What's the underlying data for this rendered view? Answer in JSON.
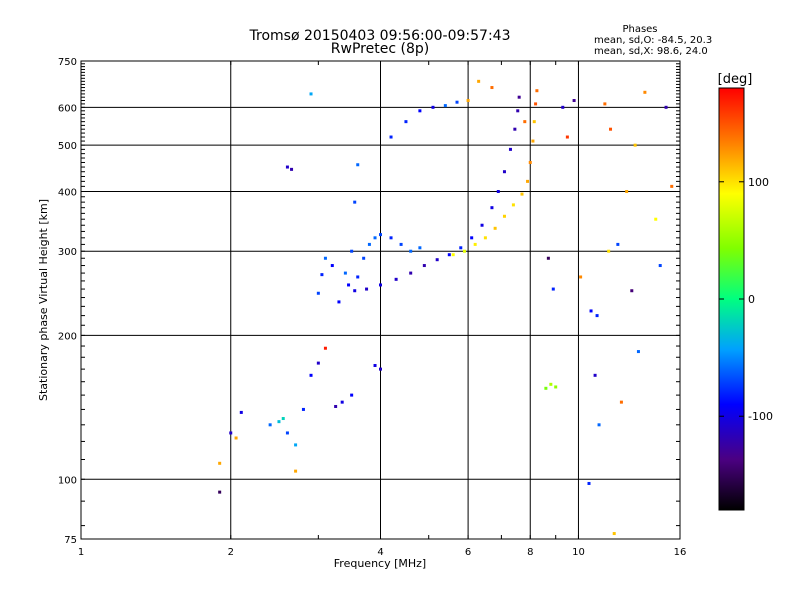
{
  "chart_data": {
    "type": "scatter",
    "title": "Tromsø 20150403 09:56:00-09:57:43",
    "subtitle": "RwPretec (8p)",
    "xlabel": "Frequency [MHz]",
    "ylabel": "Stationary phase Virtual Height [km]",
    "x_scale": "log",
    "y_scale": "log",
    "xlim": [
      1,
      16
    ],
    "ylim": [
      75,
      750
    ],
    "x_ticks": [
      1,
      2,
      4,
      6,
      8,
      10,
      16
    ],
    "y_ticks": [
      75,
      100,
      200,
      300,
      400,
      500,
      600,
      750
    ],
    "grid": true,
    "legend": {
      "title": "Phases",
      "line1": "mean, sd,O: -84.5, 20.3",
      "line2": "mean, sd,X:  98.6, 24.0"
    },
    "colorbar": {
      "label": "[deg]",
      "range": [
        -180,
        180
      ],
      "ticks": [
        100,
        0,
        -100
      ]
    },
    "series": [
      {
        "points": [
          [
            1.9,
            94,
            -150
          ],
          [
            2.05,
            122,
            120
          ],
          [
            2.0,
            125,
            -110
          ],
          [
            2.1,
            138,
            -100
          ],
          [
            2.4,
            130,
            -60
          ],
          [
            2.5,
            132,
            -30
          ],
          [
            2.55,
            134,
            -20
          ],
          [
            2.7,
            118,
            -40
          ],
          [
            2.6,
            125,
            -70
          ],
          [
            2.8,
            140,
            -80
          ],
          [
            2.9,
            165,
            -90
          ],
          [
            3.0,
            175,
            -110
          ],
          [
            3.1,
            188,
            170
          ],
          [
            3.25,
            142,
            -120
          ],
          [
            3.35,
            145,
            -100
          ],
          [
            3.5,
            150,
            -90
          ],
          [
            3.9,
            173,
            -100
          ],
          [
            4.0,
            170,
            -110
          ],
          [
            2.7,
            104,
            120
          ],
          [
            1.9,
            108,
            120
          ],
          [
            3.0,
            245,
            -70
          ],
          [
            3.05,
            268,
            -80
          ],
          [
            3.1,
            290,
            -60
          ],
          [
            3.2,
            280,
            -90
          ],
          [
            3.3,
            235,
            -90
          ],
          [
            3.4,
            270,
            -60
          ],
          [
            3.5,
            300,
            -70
          ],
          [
            3.6,
            265,
            -80
          ],
          [
            3.7,
            290,
            -70
          ],
          [
            3.8,
            310,
            -60
          ],
          [
            3.9,
            320,
            -60
          ],
          [
            4.0,
            325,
            -70
          ],
          [
            4.2,
            320,
            -80
          ],
          [
            4.4,
            310,
            -70
          ],
          [
            4.6,
            300,
            -60
          ],
          [
            4.8,
            305,
            -60
          ],
          [
            3.45,
            255,
            -90
          ],
          [
            3.55,
            248,
            -100
          ],
          [
            3.75,
            250,
            -110
          ],
          [
            4.0,
            255,
            -100
          ],
          [
            4.3,
            262,
            -110
          ],
          [
            4.6,
            270,
            -120
          ],
          [
            4.9,
            280,
            -120
          ],
          [
            5.2,
            288,
            -110
          ],
          [
            5.5,
            295,
            -90
          ],
          [
            5.8,
            305,
            -80
          ],
          [
            6.1,
            320,
            -90
          ],
          [
            6.4,
            340,
            -100
          ],
          [
            6.7,
            370,
            -100
          ],
          [
            6.9,
            400,
            -100
          ],
          [
            7.1,
            440,
            -110
          ],
          [
            7.3,
            490,
            -110
          ],
          [
            7.45,
            540,
            -120
          ],
          [
            7.55,
            590,
            -120
          ],
          [
            7.6,
            630,
            -130
          ],
          [
            5.6,
            295,
            90
          ],
          [
            5.9,
            300,
            80
          ],
          [
            6.2,
            310,
            95
          ],
          [
            6.5,
            320,
            100
          ],
          [
            6.8,
            335,
            110
          ],
          [
            7.1,
            355,
            105
          ],
          [
            7.4,
            375,
            100
          ],
          [
            7.7,
            395,
            110
          ],
          [
            7.9,
            420,
            120
          ],
          [
            8.0,
            460,
            130
          ],
          [
            8.1,
            510,
            120
          ],
          [
            8.15,
            560,
            110
          ],
          [
            8.2,
            610,
            150
          ],
          [
            8.25,
            650,
            140
          ],
          [
            7.8,
            560,
            140
          ],
          [
            4.2,
            520,
            -80
          ],
          [
            4.5,
            560,
            -80
          ],
          [
            4.8,
            590,
            -90
          ],
          [
            5.1,
            600,
            -100
          ],
          [
            5.4,
            605,
            -60
          ],
          [
            5.7,
            615,
            -70
          ],
          [
            6.0,
            620,
            120
          ],
          [
            6.3,
            680,
            120
          ],
          [
            6.7,
            660,
            140
          ],
          [
            3.6,
            455,
            -60
          ],
          [
            2.9,
            640,
            -40
          ],
          [
            2.6,
            450,
            -110
          ],
          [
            2.65,
            445,
            -120
          ],
          [
            3.55,
            380,
            -70
          ],
          [
            8.6,
            155,
            40
          ],
          [
            8.8,
            158,
            60
          ],
          [
            9.0,
            156,
            50
          ],
          [
            8.7,
            290,
            -150
          ],
          [
            8.9,
            250,
            -80
          ],
          [
            9.3,
            600,
            -110
          ],
          [
            9.8,
            620,
            -130
          ],
          [
            10.1,
            265,
            130
          ],
          [
            10.6,
            225,
            -90
          ],
          [
            10.9,
            220,
            -80
          ],
          [
            10.5,
            98,
            -80
          ],
          [
            11.0,
            130,
            -60
          ],
          [
            11.3,
            610,
            140
          ],
          [
            11.6,
            540,
            150
          ],
          [
            12.0,
            310,
            -70
          ],
          [
            12.5,
            400,
            120
          ],
          [
            12.8,
            248,
            -140
          ],
          [
            13.2,
            185,
            -60
          ],
          [
            13.6,
            645,
            130
          ],
          [
            14.3,
            350,
            90
          ],
          [
            14.6,
            280,
            -70
          ],
          [
            15.0,
            600,
            -120
          ],
          [
            15.4,
            410,
            140
          ],
          [
            11.8,
            77,
            110
          ],
          [
            12.2,
            145,
            140
          ],
          [
            10.8,
            165,
            -110
          ],
          [
            9.5,
            520,
            160
          ],
          [
            11.5,
            300,
            100
          ],
          [
            13.0,
            500,
            110
          ]
        ]
      }
    ]
  }
}
